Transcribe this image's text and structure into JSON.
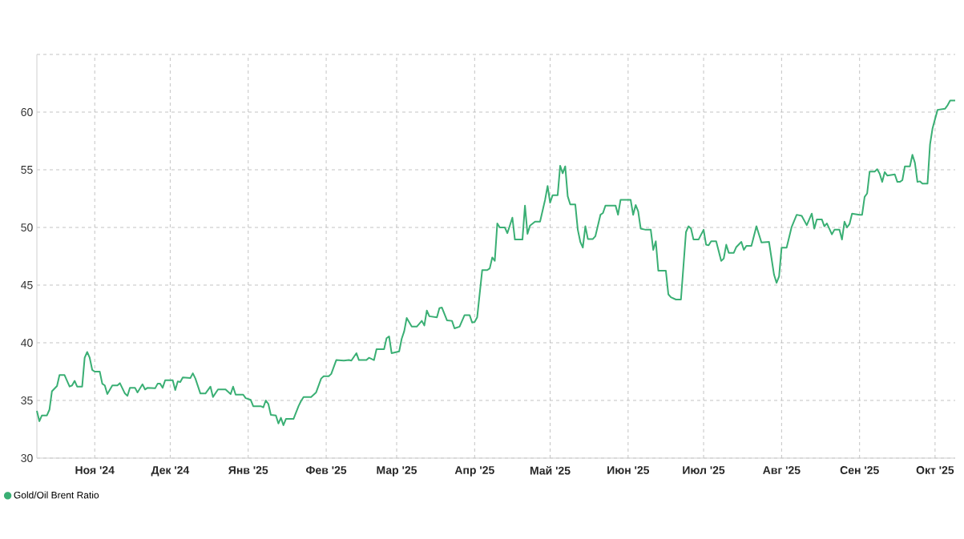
{
  "chart_data": {
    "type": "line",
    "x": [
      "2024-10-09",
      "2024-10-10",
      "2024-10-11",
      "2024-10-13",
      "2024-10-14",
      "2024-10-15",
      "2024-10-17",
      "2024-10-18",
      "2024-10-20",
      "2024-10-22",
      "2024-10-23",
      "2024-10-24",
      "2024-10-25",
      "2024-10-27",
      "2024-10-28",
      "2024-10-29",
      "2024-10-30",
      "2024-10-31",
      "2024-11-01",
      "2024-11-03",
      "2024-11-04",
      "2024-11-05",
      "2024-11-06",
      "2024-11-08",
      "2024-11-10",
      "2024-11-11",
      "2024-11-13",
      "2024-11-14",
      "2024-11-15",
      "2024-11-17",
      "2024-11-18",
      "2024-11-20",
      "2024-11-21",
      "2024-11-22",
      "2024-11-25",
      "2024-11-26",
      "2024-11-27",
      "2024-11-28",
      "2024-11-29",
      "2024-12-02",
      "2024-12-03",
      "2024-12-04",
      "2024-12-05",
      "2024-12-06",
      "2024-12-09",
      "2024-12-10",
      "2024-12-11",
      "2024-12-13",
      "2024-12-15",
      "2024-12-17",
      "2024-12-18",
      "2024-12-20",
      "2024-12-23",
      "2024-12-25",
      "2024-12-26",
      "2024-12-27",
      "2024-12-30",
      "2024-12-31",
      "2025-01-02",
      "2025-01-03",
      "2025-01-06",
      "2025-01-07",
      "2025-01-08",
      "2025-01-09",
      "2025-01-10",
      "2025-01-12",
      "2025-01-13",
      "2025-01-14",
      "2025-01-15",
      "2025-01-16",
      "2025-01-19",
      "2025-01-21",
      "2025-01-22",
      "2025-01-23",
      "2025-01-26",
      "2025-01-28",
      "2025-01-30",
      "2025-01-31",
      "2025-02-02",
      "2025-02-03",
      "2025-02-05",
      "2025-02-08",
      "2025-02-10",
      "2025-02-11",
      "2025-02-13",
      "2025-02-14",
      "2025-02-17",
      "2025-02-18",
      "2025-02-20",
      "2025-02-21",
      "2025-02-24",
      "2025-02-25",
      "2025-02-26",
      "2025-02-27",
      "2025-03-02",
      "2025-03-03",
      "2025-03-04",
      "2025-03-05",
      "2025-03-07",
      "2025-03-09",
      "2025-03-11",
      "2025-03-12",
      "2025-03-13",
      "2025-03-14",
      "2025-03-17",
      "2025-03-18",
      "2025-03-19",
      "2025-03-21",
      "2025-03-23",
      "2025-03-24",
      "2025-03-26",
      "2025-03-28",
      "2025-03-30",
      "2025-03-31",
      "2025-04-01",
      "2025-04-02",
      "2025-04-04",
      "2025-04-06",
      "2025-04-07",
      "2025-04-08",
      "2025-04-09",
      "2025-04-10",
      "2025-04-11",
      "2025-04-13",
      "2025-04-14",
      "2025-04-16",
      "2025-04-17",
      "2025-04-20",
      "2025-04-21",
      "2025-04-22",
      "2025-04-23",
      "2025-04-25",
      "2025-04-27",
      "2025-04-29",
      "2025-04-30",
      "2025-05-01",
      "2025-05-02",
      "2025-05-04",
      "2025-05-05",
      "2025-05-06",
      "2025-05-07",
      "2025-05-08",
      "2025-05-09",
      "2025-05-11",
      "2025-05-12",
      "2025-05-13",
      "2025-05-14",
      "2025-05-15",
      "2025-05-16",
      "2025-05-18",
      "2025-05-19",
      "2025-05-21",
      "2025-05-22",
      "2025-05-23",
      "2025-05-27",
      "2025-05-28",
      "2025-05-29",
      "2025-06-02",
      "2025-06-03",
      "2025-06-04",
      "2025-06-05",
      "2025-06-06",
      "2025-06-08",
      "2025-06-10",
      "2025-06-11",
      "2025-06-12",
      "2025-06-13",
      "2025-06-16",
      "2025-06-17",
      "2025-06-18",
      "2025-06-20",
      "2025-06-22",
      "2025-06-24",
      "2025-06-25",
      "2025-06-26",
      "2025-06-27",
      "2025-06-29",
      "2025-07-01",
      "2025-07-02",
      "2025-07-03",
      "2025-07-04",
      "2025-07-06",
      "2025-07-08",
      "2025-07-09",
      "2025-07-10",
      "2025-07-11",
      "2025-07-13",
      "2025-07-14",
      "2025-07-16",
      "2025-07-17",
      "2025-07-18",
      "2025-07-20",
      "2025-07-22",
      "2025-07-24",
      "2025-07-27",
      "2025-07-29",
      "2025-07-30",
      "2025-07-31",
      "2025-08-01",
      "2025-08-03",
      "2025-08-05",
      "2025-08-07",
      "2025-08-09",
      "2025-08-11",
      "2025-08-13",
      "2025-08-14",
      "2025-08-15",
      "2025-08-17",
      "2025-08-18",
      "2025-08-19",
      "2025-08-21",
      "2025-08-22",
      "2025-08-24",
      "2025-08-25",
      "2025-08-26",
      "2025-08-27",
      "2025-08-28",
      "2025-08-29",
      "2025-09-01",
      "2025-09-02",
      "2025-09-03",
      "2025-09-04",
      "2025-09-05",
      "2025-09-07",
      "2025-09-08",
      "2025-09-09",
      "2025-09-10",
      "2025-09-11",
      "2025-09-12",
      "2025-09-15",
      "2025-09-16",
      "2025-09-17",
      "2025-09-18",
      "2025-09-19",
      "2025-09-21",
      "2025-09-22",
      "2025-09-23",
      "2025-09-24",
      "2025-09-25",
      "2025-09-26",
      "2025-09-28",
      "2025-09-29",
      "2025-09-30",
      "2025-10-01",
      "2025-10-02",
      "2025-10-05",
      "2025-10-06",
      "2025-10-07",
      "2025-10-09"
    ],
    "series": [
      {
        "name": "Gold/Oil Brent Ratio",
        "color": "#3aaf74",
        "values": [
          34.1,
          33.2,
          33.7,
          33.7,
          34.2,
          35.8,
          36.25,
          37.2,
          37.2,
          36.2,
          36.3,
          36.7,
          36.2,
          36.2,
          38.7,
          39.2,
          38.7,
          37.65,
          37.5,
          37.5,
          36.45,
          36.3,
          35.55,
          36.3,
          36.3,
          36.5,
          35.6,
          35.4,
          36.1,
          36.1,
          35.7,
          36.4,
          35.95,
          36.1,
          36.05,
          36.45,
          36.45,
          36.1,
          36.75,
          36.75,
          35.9,
          36.65,
          36.6,
          37.0,
          36.95,
          37.35,
          36.9,
          35.6,
          35.6,
          36.2,
          35.3,
          35.95,
          35.95,
          35.55,
          36.2,
          35.5,
          35.5,
          35.2,
          35.05,
          34.5,
          34.5,
          34.4,
          35.0,
          34.7,
          33.75,
          33.7,
          33.0,
          33.5,
          32.85,
          33.4,
          33.4,
          34.5,
          34.95,
          35.3,
          35.3,
          35.7,
          36.9,
          37.1,
          37.1,
          37.3,
          38.5,
          38.45,
          38.5,
          38.45,
          39.1,
          38.5,
          38.5,
          38.7,
          38.5,
          39.45,
          39.45,
          40.4,
          40.55,
          39.1,
          39.25,
          40.35,
          41.0,
          42.15,
          41.4,
          41.4,
          41.9,
          41.5,
          42.8,
          42.3,
          42.2,
          43.0,
          43.05,
          41.95,
          41.9,
          41.25,
          41.4,
          42.4,
          42.4,
          41.75,
          41.8,
          42.2,
          46.3,
          46.3,
          46.45,
          47.4,
          47.1,
          50.35,
          50.0,
          50.0,
          49.5,
          50.85,
          48.95,
          48.95,
          51.9,
          49.45,
          50.15,
          50.5,
          50.5,
          52.4,
          53.6,
          52.15,
          52.8,
          52.8,
          55.35,
          54.7,
          55.3,
          52.7,
          52.0,
          52.0,
          49.8,
          48.75,
          48.25,
          50.1,
          49.0,
          49.0,
          49.25,
          51.1,
          51.25,
          51.9,
          51.9,
          51.1,
          52.4,
          52.4,
          51.1,
          51.95,
          51.4,
          49.9,
          49.8,
          49.8,
          48.05,
          48.8,
          46.25,
          46.25,
          44.2,
          43.95,
          43.75,
          43.75,
          49.6,
          50.1,
          49.9,
          48.95,
          48.95,
          49.8,
          48.5,
          48.45,
          48.8,
          48.8,
          47.1,
          47.3,
          48.5,
          47.8,
          47.8,
          48.3,
          48.75,
          48.05,
          48.4,
          48.4,
          50.1,
          48.7,
          48.75,
          45.9,
          45.2,
          45.75,
          48.25,
          48.25,
          50.05,
          51.1,
          51.0,
          50.2,
          51.2,
          49.9,
          50.7,
          50.7,
          50.1,
          50.35,
          49.4,
          49.8,
          49.8,
          48.95,
          50.5,
          50.0,
          50.3,
          51.2,
          51.1,
          51.1,
          52.65,
          52.95,
          54.85,
          54.85,
          55.05,
          54.65,
          53.95,
          54.8,
          54.5,
          54.6,
          53.95,
          53.95,
          54.1,
          55.3,
          55.3,
          56.3,
          55.6,
          53.95,
          54.0,
          53.8,
          53.8,
          57.2,
          58.6,
          59.4,
          60.2,
          60.3,
          60.6,
          61.0,
          61.0
        ]
      }
    ],
    "xlim": [
      "2024-10-09",
      "2025-10-09"
    ],
    "xticks": [
      {
        "value": "2024-11-01",
        "label": "Ноя '24"
      },
      {
        "value": "2024-12-01",
        "label": "Дек '24"
      },
      {
        "value": "2025-01-01",
        "label": "Янв '25"
      },
      {
        "value": "2025-02-01",
        "label": "Фев '25"
      },
      {
        "value": "2025-03-01",
        "label": "Мар '25"
      },
      {
        "value": "2025-04-01",
        "label": "Апр '25"
      },
      {
        "value": "2025-05-01",
        "label": "Май '25"
      },
      {
        "value": "2025-06-01",
        "label": "Июн '25"
      },
      {
        "value": "2025-07-01",
        "label": "Июл '25"
      },
      {
        "value": "2025-08-01",
        "label": "Авг '25"
      },
      {
        "value": "2025-09-01",
        "label": "Сен '25"
      },
      {
        "value": "2025-10-01",
        "label": "Окт '25"
      }
    ],
    "ylim": [
      30,
      65
    ],
    "yticks": [
      30,
      35,
      40,
      45,
      50,
      55,
      60,
      {
        "value": 65,
        "label": null
      }
    ],
    "grid": true,
    "legend": "bottom left",
    "marker": "none",
    "line_style": "solid"
  }
}
